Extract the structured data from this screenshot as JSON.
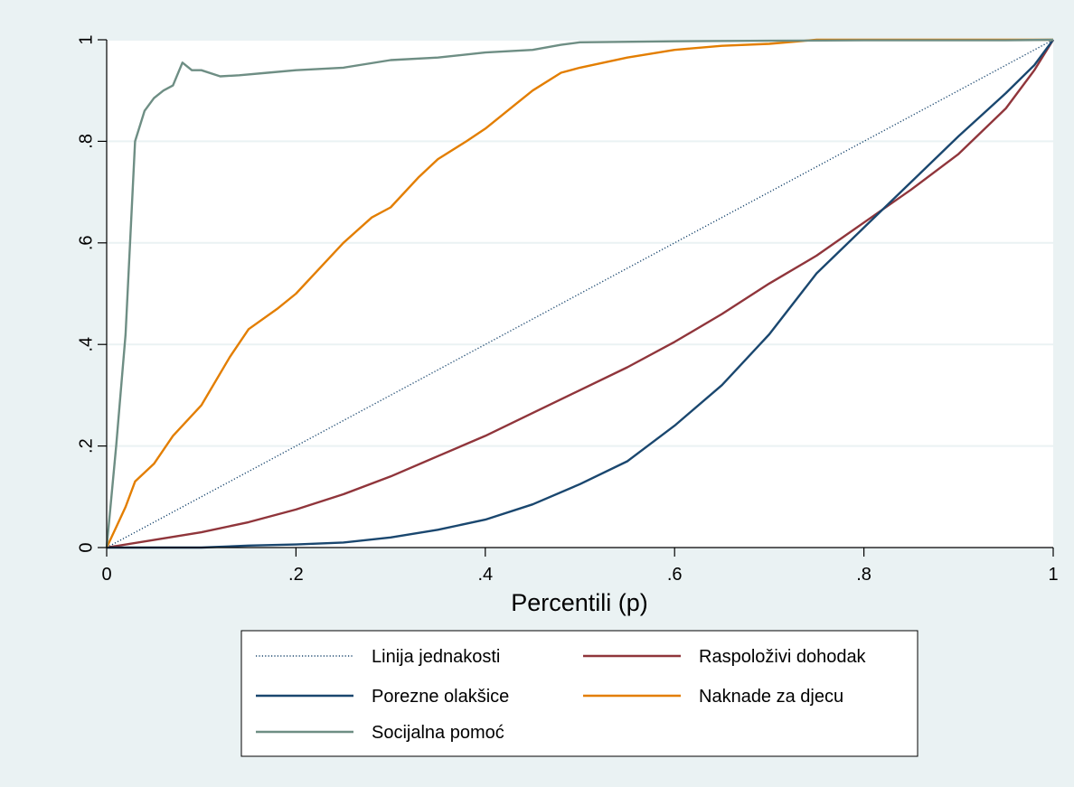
{
  "chart_data": {
    "type": "line",
    "title": "",
    "xlabel": "Percentili (p)",
    "ylabel": "",
    "xlim": [
      0,
      1
    ],
    "ylim": [
      0,
      1
    ],
    "x_ticks": [
      {
        "value": 0,
        "label": "0"
      },
      {
        "value": 0.2,
        "label": ".2"
      },
      {
        "value": 0.4,
        "label": ".4"
      },
      {
        "value": 0.6,
        "label": ".6"
      },
      {
        "value": 0.8,
        "label": ".8"
      },
      {
        "value": 1,
        "label": "1"
      }
    ],
    "y_ticks": [
      {
        "value": 0,
        "label": "0"
      },
      {
        "value": 0.2,
        "label": ".2"
      },
      {
        "value": 0.4,
        "label": ".4"
      },
      {
        "value": 0.6,
        "label": ".6"
      },
      {
        "value": 0.8,
        "label": ".8"
      },
      {
        "value": 1,
        "label": "1"
      }
    ],
    "grid": "horizontal",
    "legend_position": "bottom",
    "series": [
      {
        "name": "Linija jednakosti",
        "color": "#1a476f",
        "style": "dotted",
        "points": [
          [
            0,
            0
          ],
          [
            1,
            1
          ]
        ]
      },
      {
        "name": "Raspoloživi dohodak",
        "color": "#90353b",
        "style": "solid",
        "points": [
          [
            0,
            0
          ],
          [
            0.05,
            0.015
          ],
          [
            0.1,
            0.03
          ],
          [
            0.15,
            0.05
          ],
          [
            0.2,
            0.075
          ],
          [
            0.25,
            0.105
          ],
          [
            0.3,
            0.14
          ],
          [
            0.35,
            0.18
          ],
          [
            0.4,
            0.22
          ],
          [
            0.45,
            0.265
          ],
          [
            0.5,
            0.31
          ],
          [
            0.55,
            0.355
          ],
          [
            0.6,
            0.405
          ],
          [
            0.65,
            0.46
          ],
          [
            0.7,
            0.52
          ],
          [
            0.75,
            0.575
          ],
          [
            0.8,
            0.64
          ],
          [
            0.85,
            0.705
          ],
          [
            0.9,
            0.775
          ],
          [
            0.95,
            0.865
          ],
          [
            0.98,
            0.94
          ],
          [
            1,
            1
          ]
        ]
      },
      {
        "name": "Porezne olakšice",
        "color": "#1a476f",
        "style": "solid",
        "points": [
          [
            0,
            0
          ],
          [
            0.1,
            0
          ],
          [
            0.15,
            0.004
          ],
          [
            0.2,
            0.006
          ],
          [
            0.25,
            0.01
          ],
          [
            0.3,
            0.02
          ],
          [
            0.35,
            0.035
          ],
          [
            0.4,
            0.055
          ],
          [
            0.45,
            0.085
          ],
          [
            0.5,
            0.125
          ],
          [
            0.55,
            0.17
          ],
          [
            0.6,
            0.24
          ],
          [
            0.65,
            0.32
          ],
          [
            0.7,
            0.42
          ],
          [
            0.75,
            0.54
          ],
          [
            0.8,
            0.63
          ],
          [
            0.85,
            0.72
          ],
          [
            0.9,
            0.81
          ],
          [
            0.95,
            0.895
          ],
          [
            0.98,
            0.95
          ],
          [
            1,
            1
          ]
        ]
      },
      {
        "name": "Naknade za djecu",
        "color": "#e37e00",
        "style": "solid",
        "points": [
          [
            0,
            0
          ],
          [
            0.01,
            0.04
          ],
          [
            0.02,
            0.08
          ],
          [
            0.03,
            0.13
          ],
          [
            0.05,
            0.165
          ],
          [
            0.07,
            0.22
          ],
          [
            0.1,
            0.28
          ],
          [
            0.13,
            0.375
          ],
          [
            0.15,
            0.43
          ],
          [
            0.18,
            0.47
          ],
          [
            0.2,
            0.5
          ],
          [
            0.23,
            0.56
          ],
          [
            0.25,
            0.6
          ],
          [
            0.28,
            0.65
          ],
          [
            0.3,
            0.67
          ],
          [
            0.33,
            0.73
          ],
          [
            0.35,
            0.765
          ],
          [
            0.38,
            0.8
          ],
          [
            0.4,
            0.825
          ],
          [
            0.43,
            0.87
          ],
          [
            0.45,
            0.9
          ],
          [
            0.48,
            0.935
          ],
          [
            0.5,
            0.945
          ],
          [
            0.55,
            0.965
          ],
          [
            0.6,
            0.98
          ],
          [
            0.65,
            0.988
          ],
          [
            0.7,
            0.992
          ],
          [
            0.75,
            1
          ],
          [
            1,
            1
          ]
        ]
      },
      {
        "name": "Socijalna pomoć",
        "color": "#6e8e84",
        "style": "solid",
        "points": [
          [
            0,
            0
          ],
          [
            0.01,
            0.2
          ],
          [
            0.02,
            0.42
          ],
          [
            0.03,
            0.8
          ],
          [
            0.04,
            0.86
          ],
          [
            0.05,
            0.885
          ],
          [
            0.06,
            0.9
          ],
          [
            0.07,
            0.91
          ],
          [
            0.08,
            0.955
          ],
          [
            0.09,
            0.94
          ],
          [
            0.1,
            0.94
          ],
          [
            0.12,
            0.928
          ],
          [
            0.14,
            0.93
          ],
          [
            0.17,
            0.935
          ],
          [
            0.2,
            0.94
          ],
          [
            0.25,
            0.945
          ],
          [
            0.3,
            0.96
          ],
          [
            0.35,
            0.965
          ],
          [
            0.4,
            0.975
          ],
          [
            0.45,
            0.98
          ],
          [
            0.48,
            0.99
          ],
          [
            0.5,
            0.995
          ],
          [
            0.6,
            0.997
          ],
          [
            0.7,
            0.998
          ],
          [
            0.8,
            0.999
          ],
          [
            0.95,
            0.999
          ],
          [
            1,
            1
          ]
        ]
      }
    ]
  },
  "legend": {
    "items": [
      {
        "label": "Linija jednakosti",
        "series": 0
      },
      {
        "label": "Raspoloživi dohodak",
        "series": 1
      },
      {
        "label": "Porezne olakšice",
        "series": 2
      },
      {
        "label": "Naknade za djecu",
        "series": 3
      },
      {
        "label": "Socijalna pomoć",
        "series": 4
      }
    ]
  },
  "colors": {
    "outer_background": "#eaf2f3",
    "plot_background": "#ffffff",
    "grid": "#eaf2f3",
    "axis": "#000000"
  }
}
